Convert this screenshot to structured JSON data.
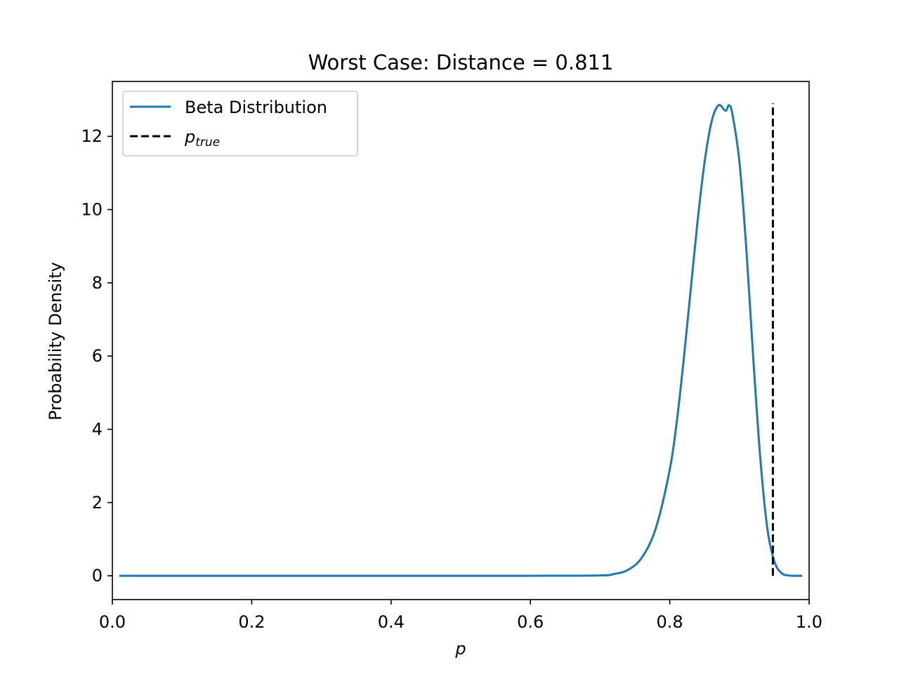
{
  "chart_data": {
    "type": "line",
    "title": "Worst Case: Distance = 0.811",
    "xlabel": "p",
    "ylabel": "Probability Density",
    "xlim": [
      0.0,
      1.0
    ],
    "ylim": [
      -0.65,
      13.5
    ],
    "xticks": [
      0.0,
      0.2,
      0.4,
      0.6,
      0.8,
      1.0
    ],
    "xtick_labels": [
      "0.0",
      "0.2",
      "0.4",
      "0.6",
      "0.8",
      "1.0"
    ],
    "yticks": [
      0,
      2,
      4,
      6,
      8,
      10,
      12
    ],
    "ytick_labels": [
      "0",
      "2",
      "4",
      "6",
      "8",
      "10",
      "12"
    ],
    "grid": false,
    "legend_position": "upper-left",
    "series": [
      {
        "name": "Beta Distribution",
        "color": "#1f77b4",
        "style": "solid",
        "x": [
          0.01,
          0.1,
          0.2,
          0.3,
          0.4,
          0.5,
          0.6,
          0.7,
          0.72,
          0.74,
          0.76,
          0.78,
          0.8,
          0.81,
          0.82,
          0.83,
          0.84,
          0.85,
          0.86,
          0.87,
          0.88,
          0.885,
          0.89,
          0.9,
          0.91,
          0.92,
          0.93,
          0.94,
          0.95,
          0.96,
          0.97,
          0.98,
          0.99
        ],
        "y": [
          0,
          0,
          0,
          0,
          0,
          0,
          0,
          0.01,
          0.05,
          0.16,
          0.5,
          1.3,
          2.9,
          4.2,
          5.9,
          7.8,
          9.7,
          11.3,
          12.4,
          12.85,
          12.7,
          12.85,
          12.6,
          11.3,
          8.9,
          5.9,
          3.2,
          1.3,
          0.4,
          0.08,
          0.01,
          0,
          0
        ]
      },
      {
        "name": "p",
        "name_subscript": "true",
        "color": "#000000",
        "style": "dashed",
        "x": [
          0.948,
          0.948
        ],
        "y": [
          0,
          12.9
        ]
      }
    ]
  }
}
